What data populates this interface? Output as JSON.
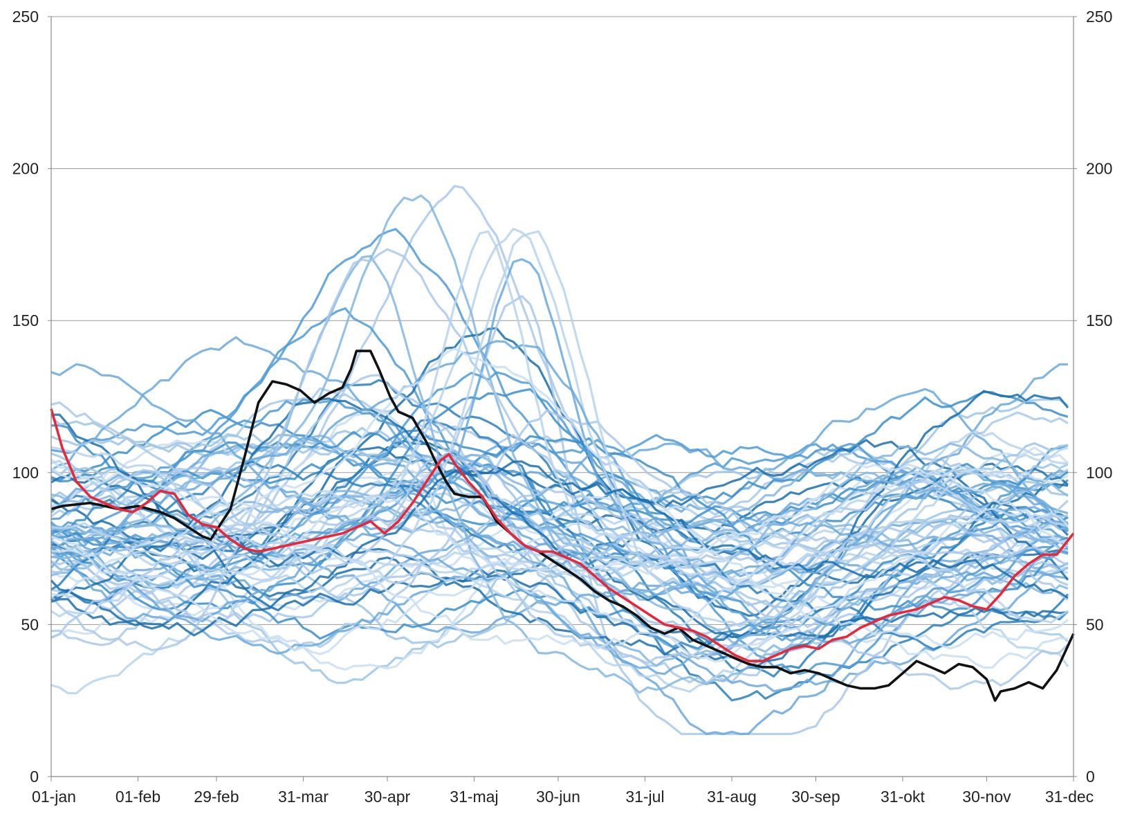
{
  "chart_data": {
    "type": "line",
    "title": "",
    "xlabel": "",
    "ylabel": "",
    "ylim": [
      0,
      250
    ],
    "yticks": [
      0,
      50,
      100,
      150,
      200,
      250
    ],
    "ytick_labels": [
      "0",
      "50",
      "100",
      "150",
      "200",
      "250"
    ],
    "x_unit": "day of year",
    "xlim": [
      1,
      366
    ],
    "xticks": [
      {
        "day": 1,
        "label": "01-jan"
      },
      {
        "day": 32,
        "label": "01-feb"
      },
      {
        "day": 60,
        "label": "29-feb"
      },
      {
        "day": 91,
        "label": "31-mar"
      },
      {
        "day": 121,
        "label": "30-apr"
      },
      {
        "day": 152,
        "label": "31-maj"
      },
      {
        "day": 182,
        "label": "30-jun"
      },
      {
        "day": 213,
        "label": "31-jul"
      },
      {
        "day": 244,
        "label": "31-aug"
      },
      {
        "day": 274,
        "label": "30-sep"
      },
      {
        "day": 305,
        "label": "31-okt"
      },
      {
        "day": 335,
        "label": "30-nov"
      },
      {
        "day": 366,
        "label": "31-dec"
      }
    ],
    "grid": true,
    "legend": "none",
    "background_series_note": "Dense bundle of historical years drawn in shades of blue (approximate envelopes)",
    "series": [
      {
        "name": "black-series",
        "color": "#111111",
        "x": [
          1,
          5,
          15,
          25,
          32,
          40,
          45,
          50,
          55,
          58,
          60,
          65,
          70,
          75,
          80,
          85,
          90,
          95,
          100,
          105,
          108,
          110,
          115,
          118,
          122,
          125,
          130,
          135,
          138,
          142,
          145,
          150,
          155,
          160,
          165,
          170,
          175,
          180,
          185,
          190,
          195,
          200,
          205,
          210,
          215,
          220,
          225,
          230,
          235,
          240,
          245,
          250,
          255,
          260,
          265,
          270,
          275,
          280,
          285,
          290,
          295,
          300,
          305,
          310,
          315,
          320,
          325,
          330,
          335,
          338,
          340,
          345,
          350,
          355,
          360,
          366
        ],
        "y": [
          88,
          89,
          90,
          88,
          89,
          87,
          85,
          82,
          79,
          78,
          81,
          88,
          105,
          123,
          130,
          129,
          127,
          123,
          126,
          128,
          134,
          140,
          140,
          134,
          125,
          120,
          118,
          110,
          104,
          97,
          93,
          92,
          92,
          84,
          80,
          76,
          74,
          71,
          68,
          65,
          61,
          58,
          56,
          53,
          49,
          47,
          49,
          45,
          43,
          41,
          39,
          37,
          36,
          36,
          34,
          35,
          34,
          32,
          30,
          29,
          29,
          30,
          34,
          38,
          36,
          34,
          37,
          36,
          32,
          25,
          28,
          29,
          31,
          29,
          35,
          47
        ]
      },
      {
        "name": "red-series",
        "color": "#e8283a",
        "x": [
          1,
          5,
          10,
          15,
          20,
          25,
          30,
          32,
          35,
          40,
          45,
          50,
          55,
          60,
          65,
          70,
          75,
          80,
          90,
          100,
          105,
          110,
          115,
          120,
          125,
          130,
          135,
          140,
          143,
          145,
          150,
          155,
          160,
          165,
          170,
          175,
          180,
          185,
          190,
          195,
          200,
          205,
          210,
          215,
          220,
          225,
          230,
          235,
          240,
          245,
          250,
          255,
          260,
          265,
          270,
          275,
          280,
          285,
          290,
          295,
          300,
          305,
          310,
          315,
          320,
          325,
          330,
          335,
          340,
          345,
          350,
          355,
          360,
          366
        ],
        "y": [
          121,
          108,
          97,
          92,
          90,
          88,
          87,
          88,
          90,
          94,
          93,
          86,
          83,
          82,
          78,
          75,
          74,
          75,
          77,
          79,
          80,
          82,
          84,
          80,
          84,
          90,
          97,
          104,
          106,
          103,
          97,
          92,
          85,
          80,
          76,
          74,
          74,
          72,
          70,
          66,
          62,
          59,
          56,
          53,
          50,
          49,
          48,
          46,
          43,
          40,
          38,
          38,
          40,
          42,
          43,
          42,
          45,
          46,
          49,
          51,
          53,
          54,
          55,
          57,
          59,
          58,
          56,
          55,
          60,
          66,
          70,
          73,
          73,
          80
        ]
      }
    ]
  }
}
